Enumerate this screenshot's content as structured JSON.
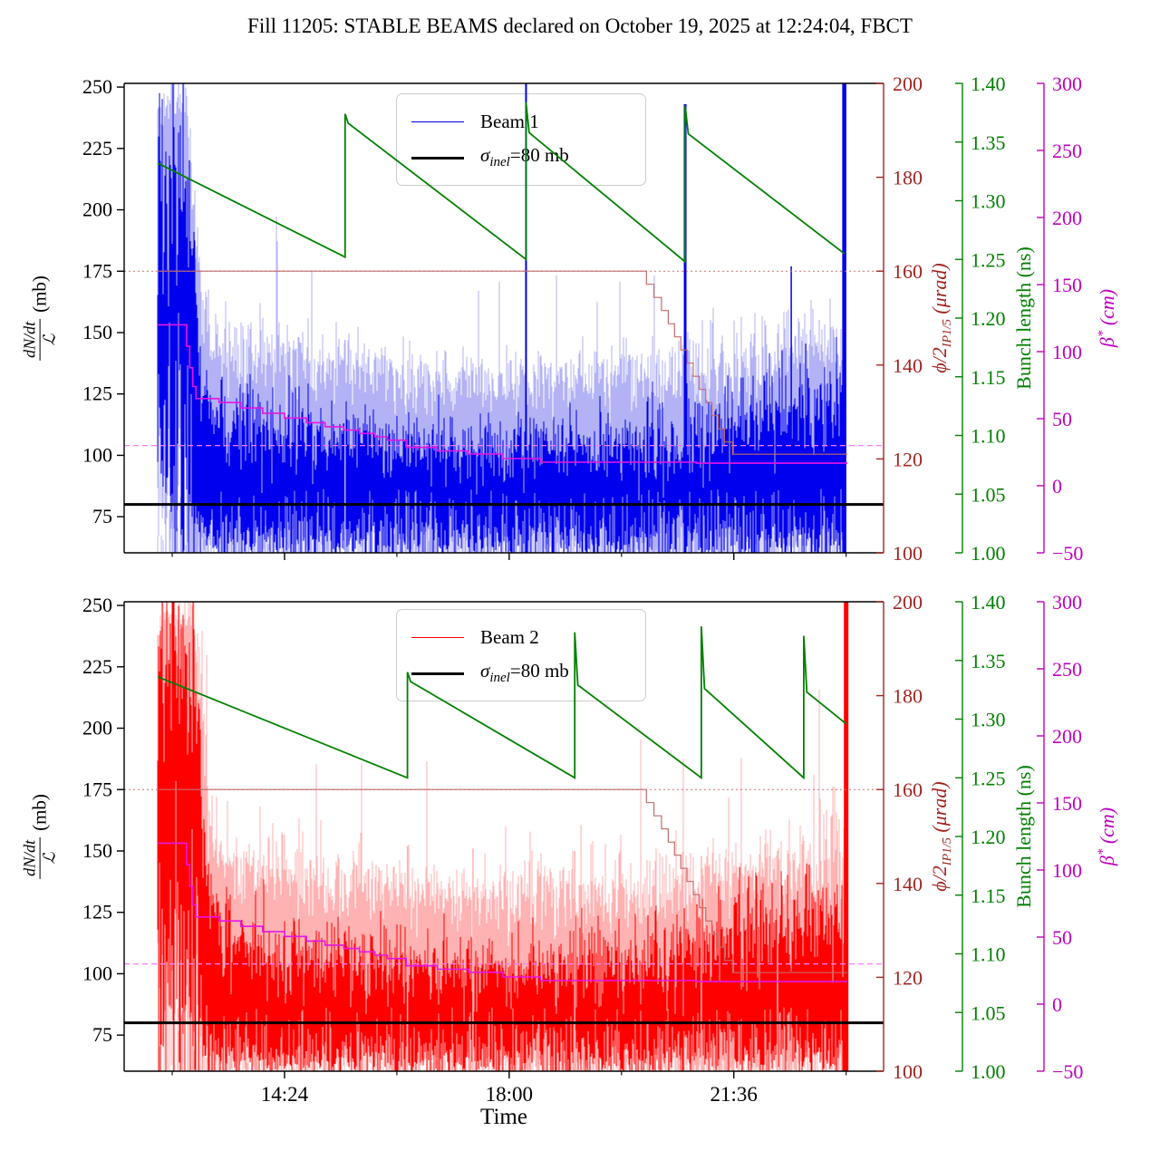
{
  "title": "Fill 11205: STABLE BEAMS declared on October 19, 2025 at 12:24:04, FBCT",
  "legend": {
    "beam1": "Beam 1",
    "beam2": "Beam 2",
    "sigma_symbol": "σ",
    "sigma_sub": "inel",
    "sigma_rest": "=80 mb"
  },
  "axes": {
    "main": {
      "label_num": "dN/dt",
      "label_den": "ℒ",
      "label_unit": "(mb)",
      "range": [
        60.3,
        251.5
      ],
      "ticks": [
        75,
        100,
        125,
        150,
        175,
        200,
        225,
        250
      ],
      "color": "#000000"
    },
    "angle": {
      "label_main": "ϕ/2",
      "label_sub": "IP1/5",
      "label_unit": " (μrad)",
      "range": [
        100,
        200
      ],
      "ticks": [
        100,
        120,
        140,
        160,
        180,
        200
      ],
      "color": "#a02420"
    },
    "bunch": {
      "label": "Bunch length (ns)",
      "range": [
        1.0,
        1.4
      ],
      "ticks": [
        1.0,
        1.05,
        1.1,
        1.15,
        1.2,
        1.25,
        1.3,
        1.35,
        1.4
      ],
      "color": "#008000"
    },
    "beta": {
      "label_main": "β",
      "label_sup": "*",
      "label_unit": " (cm)",
      "range": [
        -50,
        300
      ],
      "ticks": [
        -50,
        0,
        50,
        100,
        150,
        200,
        250,
        300
      ],
      "color": "#bf00bf"
    }
  },
  "xaxis": {
    "label": "Time",
    "range_hours": [
      11.83,
      24.0
    ],
    "major_ticks": [
      {
        "hour": 14.4,
        "label": "14:24"
      },
      {
        "hour": 18.0,
        "label": "18:00"
      },
      {
        "hour": 21.6,
        "label": "21:36"
      }
    ],
    "minor_tick_hours": [
      12.6,
      16.2,
      19.8,
      23.4
    ]
  },
  "chart_data": {
    "type": "line",
    "title": "Fill 11205: STABLE BEAMS declared on October 19, 2025 at 12:24:04, FBCT",
    "xlabel": "Time",
    "grid": false,
    "overlays": {
      "sigma_inel_mb": 80,
      "crossing_angle_ref_urad": 160,
      "beta_star_ref_cm": 30,
      "crossing_angle_steps_urad": [
        [
          12.37,
          160
        ],
        [
          20.2,
          157.2
        ],
        [
          20.32,
          154.4
        ],
        [
          20.44,
          151.6
        ],
        [
          20.55,
          148.8
        ],
        [
          20.65,
          146
        ],
        [
          20.75,
          143.2
        ],
        [
          20.85,
          140.4
        ],
        [
          20.95,
          137.6
        ],
        [
          21.05,
          134.8
        ],
        [
          21.15,
          132
        ],
        [
          21.25,
          129.2
        ],
        [
          21.35,
          126.4
        ],
        [
          21.45,
          123.6
        ],
        [
          21.58,
          121
        ],
        [
          23.42,
          121
        ]
      ],
      "beta_star_steps_cm": [
        [
          12.37,
          120
        ],
        [
          12.83,
          104
        ],
        [
          12.88,
          88
        ],
        [
          12.93,
          74
        ],
        [
          12.98,
          65
        ],
        [
          13.35,
          62
        ],
        [
          13.7,
          58
        ],
        [
          14.05,
          54
        ],
        [
          14.4,
          50.5
        ],
        [
          14.75,
          47
        ],
        [
          15.05,
          44
        ],
        [
          15.35,
          41.5
        ],
        [
          15.6,
          39
        ],
        [
          15.85,
          36.5
        ],
        [
          16.05,
          34
        ],
        [
          16.35,
          28.6
        ],
        [
          16.85,
          26
        ],
        [
          17.35,
          23.7
        ],
        [
          17.9,
          20.3
        ],
        [
          18.5,
          17.6
        ],
        [
          21.0,
          16.8
        ],
        [
          23.42,
          16.8
        ]
      ]
    },
    "subplots": [
      {
        "name": "Beam 1",
        "beam_color": "#0000ee",
        "beam_color_light": "#b2b2f5",
        "bunch_length_ns": [
          [
            12.37,
            1.332
          ],
          [
            15.37,
            1.252
          ],
          [
            15.37,
            1.374
          ],
          [
            15.42,
            1.366
          ],
          [
            18.27,
            1.25
          ],
          [
            18.27,
            1.384
          ],
          [
            18.32,
            1.358
          ],
          [
            20.82,
            1.248
          ],
          [
            20.82,
            1.381
          ],
          [
            20.87,
            1.357
          ],
          [
            23.37,
            1.255
          ]
        ],
        "spikes": [
          {
            "hour": 15.37,
            "top_mb": 147,
            "width": 1.5,
            "shade": "light"
          },
          {
            "hour": 18.27,
            "top_mb": 251.5,
            "width": 2,
            "shade": "dark"
          },
          {
            "hour": 20.82,
            "top_mb": 243,
            "width": 3,
            "shade": "dark"
          },
          {
            "hour": 22.52,
            "top_mb": 177,
            "width": 1.5,
            "shade": "dark"
          },
          {
            "hour": 23.37,
            "top_mb": 251.5,
            "width": 4.5,
            "shade": "dark"
          }
        ],
        "noise_envelope": [
          [
            12.37,
            245,
            6,
            220,
            25,
            80,
            28,
            95,
            38
          ],
          [
            12.82,
            245,
            6,
            220,
            25,
            80,
            28,
            95,
            38
          ],
          [
            12.95,
            200,
            15,
            165,
            20,
            70,
            15,
            72,
            20
          ],
          [
            13.05,
            163,
            12,
            132,
            14,
            66,
            7,
            66,
            8
          ],
          [
            13.2,
            146,
            9,
            117,
            10,
            65,
            5,
            64,
            6
          ],
          [
            13.6,
            143,
            8,
            112,
            9,
            65,
            5,
            64,
            6
          ],
          [
            14.4,
            140,
            8,
            110,
            9,
            65,
            5,
            64,
            6
          ],
          [
            15.5,
            136,
            8,
            107,
            8,
            65,
            5,
            64,
            6
          ],
          [
            16.5,
            132,
            7,
            104,
            8,
            65,
            5,
            64,
            6
          ],
          [
            17.5,
            130,
            7,
            102,
            8,
            65,
            5,
            64,
            6
          ],
          [
            18.5,
            131,
            7,
            103,
            8,
            65,
            5,
            64,
            6
          ],
          [
            19.5,
            132,
            8,
            104,
            8,
            65,
            5,
            64,
            6
          ],
          [
            20.5,
            133,
            8,
            106,
            9,
            65,
            5,
            64,
            6
          ],
          [
            21.3,
            136,
            9,
            110,
            10,
            65,
            5,
            64,
            6
          ],
          [
            22.0,
            140,
            10,
            116,
            11,
            65,
            5,
            64,
            6
          ],
          [
            22.8,
            144,
            10,
            120,
            12,
            65,
            5,
            64,
            6
          ],
          [
            23.37,
            146,
            10,
            122,
            12,
            65,
            5,
            64,
            6
          ]
        ]
      },
      {
        "name": "Beam 2",
        "beam_color": "#ff0000",
        "beam_color_light": "#ffb2b2",
        "bunch_length_ns": [
          [
            12.37,
            1.336
          ],
          [
            16.37,
            1.25
          ],
          [
            16.37,
            1.34
          ],
          [
            16.42,
            1.332
          ],
          [
            19.05,
            1.25
          ],
          [
            19.05,
            1.374
          ],
          [
            19.1,
            1.329
          ],
          [
            21.08,
            1.25
          ],
          [
            21.08,
            1.379
          ],
          [
            21.13,
            1.326
          ],
          [
            22.72,
            1.25
          ],
          [
            22.72,
            1.371
          ],
          [
            22.77,
            1.323
          ],
          [
            23.4,
            1.296
          ]
        ],
        "spikes": [
          {
            "hour": 16.37,
            "top_mb": 152,
            "width": 1.5,
            "shade": "light"
          },
          {
            "hour": 17.42,
            "top_mb": 151,
            "width": 1.5,
            "shade": "light"
          },
          {
            "hour": 19.05,
            "top_mb": 150,
            "width": 1.5,
            "shade": "light"
          },
          {
            "hour": 21.08,
            "top_mb": 148,
            "width": 1.5,
            "shade": "light"
          },
          {
            "hour": 22.3,
            "top_mb": 150,
            "width": 1.5,
            "shade": "light"
          },
          {
            "hour": 23.4,
            "top_mb": 251.5,
            "width": 5,
            "shade": "dark"
          }
        ],
        "noise_envelope": [
          [
            12.37,
            246,
            6,
            222,
            22,
            80,
            28,
            95,
            38
          ],
          [
            12.95,
            246,
            6,
            222,
            22,
            80,
            28,
            95,
            38
          ],
          [
            13.08,
            205,
            15,
            168,
            20,
            70,
            15,
            72,
            20
          ],
          [
            13.18,
            168,
            12,
            135,
            14,
            66,
            7,
            66,
            8
          ],
          [
            13.35,
            148,
            9,
            117,
            10,
            65,
            5,
            64,
            6
          ],
          [
            13.7,
            144,
            8,
            112,
            9,
            65,
            5,
            64,
            6
          ],
          [
            14.4,
            140,
            8,
            108,
            9,
            65,
            5,
            64,
            6
          ],
          [
            15.5,
            136,
            8,
            105,
            8,
            65,
            5,
            64,
            6
          ],
          [
            16.5,
            133,
            7,
            103,
            8,
            65,
            5,
            64,
            6
          ],
          [
            17.5,
            131,
            7,
            102,
            8,
            65,
            5,
            64,
            6
          ],
          [
            18.5,
            133,
            8,
            104,
            9,
            65,
            5,
            64,
            6
          ],
          [
            19.5,
            134,
            8,
            105,
            9,
            65,
            5,
            64,
            6
          ],
          [
            20.5,
            136,
            9,
            107,
            10,
            65,
            5,
            64,
            6
          ],
          [
            21.3,
            139,
            10,
            112,
            11,
            65,
            5,
            64,
            6
          ],
          [
            22.2,
            144,
            10,
            118,
            12,
            65,
            5,
            64,
            6
          ],
          [
            23.0,
            147,
            11,
            122,
            12,
            65,
            5,
            64,
            6
          ],
          [
            23.4,
            148,
            11,
            124,
            12,
            65,
            5,
            64,
            6
          ]
        ]
      }
    ],
    "style_colors": {
      "angle_line": "#c06c6a",
      "angle_ref_dotted": "#cc706e",
      "beta_line": "#e515e5",
      "beta_ref_dashed": "#f57df5",
      "bunch_line": "#008000",
      "sigma_line": "#000000"
    }
  }
}
